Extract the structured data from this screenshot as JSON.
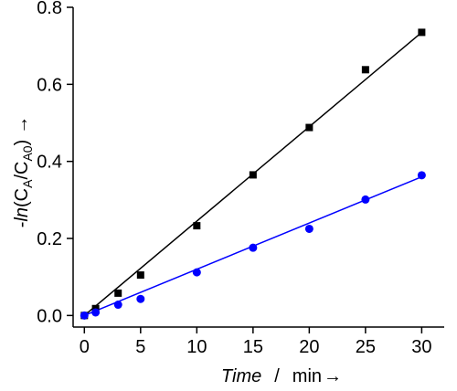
{
  "chart_data": {
    "type": "scatter",
    "xlim": [
      -1,
      32
    ],
    "ylim": [
      -0.03,
      0.8
    ],
    "x_ticks": [
      0,
      5,
      10,
      15,
      20,
      25,
      30
    ],
    "y_ticks": [
      0.0,
      0.2,
      0.4,
      0.6,
      0.8
    ],
    "x_tick_labels": [
      "0",
      "5",
      "10",
      "15",
      "20",
      "25",
      "30"
    ],
    "y_tick_labels": [
      "0.0",
      "0.2",
      "0.4",
      "0.6",
      "0.8"
    ],
    "xlabel": {
      "main": "Time",
      "separator": "/",
      "unit": "min",
      "arrow": "→"
    },
    "ylabel": {
      "prefix": "-",
      "fn": "ln",
      "open": "(C",
      "sub1": "A",
      "mid": "/C",
      "sub2": "A0",
      "close": ")",
      "arrow": "→"
    },
    "grid": false,
    "series": [
      {
        "marker": "square",
        "color": "#000000",
        "x": [
          0,
          1,
          3,
          5,
          10,
          15,
          20,
          25,
          30
        ],
        "y": [
          0.0,
          0.018,
          0.058,
          0.105,
          0.233,
          0.365,
          0.488,
          0.638,
          0.735
        ],
        "fit": {
          "slope": 0.0245,
          "intercept": 0.0,
          "x_range": [
            0,
            30
          ]
        }
      },
      {
        "marker": "circle",
        "color": "#0000ff",
        "x": [
          0,
          1,
          3,
          5,
          10,
          15,
          20,
          25,
          30
        ],
        "y": [
          0.0,
          0.008,
          0.028,
          0.043,
          0.112,
          0.176,
          0.225,
          0.301,
          0.364
        ],
        "fit": {
          "slope": 0.012,
          "intercept": 0.0,
          "x_range": [
            0,
            30
          ]
        }
      }
    ]
  }
}
